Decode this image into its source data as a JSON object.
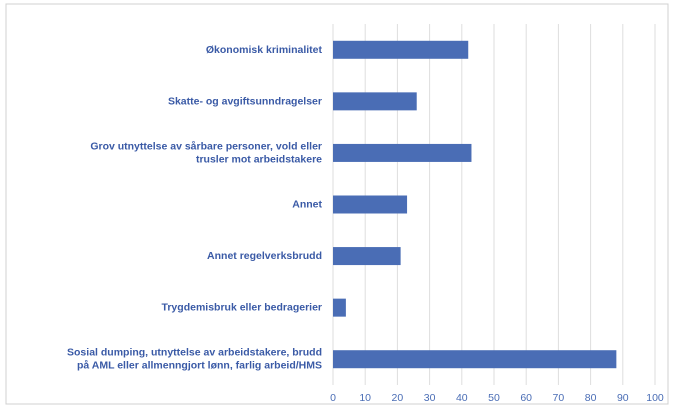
{
  "chart_data": {
    "type": "barh",
    "categories": [
      "Økonomisk kriminalitet",
      "Skatte- og avgiftsunndragelser",
      "Grov utnyttelse av sårbare personer, vold eller trusler mot arbeidstakere",
      "Annet",
      "Annet regelverksbrudd",
      "Trygdemisbruk eller bedragerier",
      "Sosial dumping, utnyttelse av arbeidstakere, brudd på AML eller allmenngjort lønn, farlig arbeid/HMS"
    ],
    "values": [
      42,
      26,
      43,
      23,
      21,
      4,
      88
    ],
    "color": "#4a6db5",
    "xlim": [
      0,
      100
    ],
    "xticks": [
      0,
      10,
      20,
      30,
      40,
      50,
      60,
      70,
      80,
      90,
      100
    ],
    "grid": true
  }
}
